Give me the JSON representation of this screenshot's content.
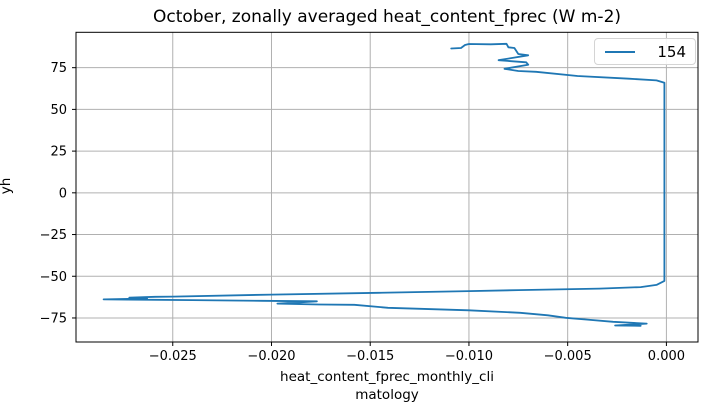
{
  "chart_data": {
    "type": "line",
    "title": "October, zonally averaged heat_content_fprec (W m-2)",
    "ylabel": "yh",
    "xlabel_lines": [
      "heat_content_fprec_monthly_cli",
      "matology"
    ],
    "grid": true,
    "legend": {
      "label": "154",
      "position": "upper right"
    },
    "line_color": "#1f77b4",
    "grid_color": "#b0b0b0",
    "xlim": [
      -0.0299,
      0.0016
    ],
    "ylim": [
      -89.4,
      96.2
    ],
    "x_ticks": {
      "values": [
        -0.025,
        -0.02,
        -0.015,
        -0.01,
        -0.005,
        0.0
      ],
      "labels": [
        "−0.025",
        "−0.020",
        "−0.015",
        "−0.010",
        "−0.005",
        "0.000"
      ]
    },
    "y_ticks": {
      "values": [
        75,
        50,
        25,
        0,
        -25,
        -50,
        -75
      ],
      "labels": [
        "75",
        "50",
        "25",
        "0",
        "−25",
        "−50",
        "−75"
      ]
    },
    "series": [
      {
        "name": "154",
        "points": [
          [
            -0.0109,
            86.5
          ],
          [
            -0.0104,
            86.8
          ],
          [
            -0.0102,
            88.6
          ],
          [
            -0.01,
            89.2
          ],
          [
            -0.0089,
            89.0
          ],
          [
            -0.0081,
            89.3
          ],
          [
            -0.008,
            87.2
          ],
          [
            -0.0077,
            86.8
          ],
          [
            -0.0075,
            83.2
          ],
          [
            -0.007,
            82.4
          ],
          [
            -0.0085,
            79.5
          ],
          [
            -0.0071,
            78.2
          ],
          [
            -0.007,
            76.8
          ],
          [
            -0.0082,
            74.3
          ],
          [
            -0.0075,
            73.0
          ],
          [
            -0.0066,
            72.5
          ],
          [
            -0.0045,
            70.0
          ],
          [
            -0.0019,
            68.4
          ],
          [
            -0.0005,
            67.4
          ],
          [
            -0.0001,
            66.0
          ],
          [
            -0.0001,
            -52.8
          ],
          [
            -0.0005,
            -55.2
          ],
          [
            -0.0013,
            -56.5
          ],
          [
            -0.0034,
            -57.4
          ],
          [
            -0.0075,
            -58.3
          ],
          [
            -0.01,
            -58.9
          ],
          [
            -0.0146,
            -59.9
          ],
          [
            -0.02,
            -61.0
          ],
          [
            -0.025,
            -62.2
          ],
          [
            -0.0259,
            -62.3
          ],
          [
            -0.0272,
            -62.8
          ],
          [
            -0.0263,
            -63.3
          ],
          [
            -0.0285,
            -63.9
          ],
          [
            -0.024,
            -64.3
          ],
          [
            -0.0205,
            -64.7
          ],
          [
            -0.0177,
            -65.0
          ],
          [
            -0.0197,
            -66.4
          ],
          [
            -0.0176,
            -66.9
          ],
          [
            -0.0158,
            -67.1
          ],
          [
            -0.0141,
            -68.9
          ],
          [
            -0.01,
            -70.4
          ],
          [
            -0.0074,
            -71.9
          ],
          [
            -0.006,
            -73.4
          ],
          [
            -0.0051,
            -74.9
          ],
          [
            -0.004,
            -76.0
          ],
          [
            -0.0027,
            -77.3
          ],
          [
            -0.001,
            -78.4
          ],
          [
            -0.0026,
            -79.5
          ],
          [
            -0.0013,
            -79.7
          ]
        ]
      }
    ]
  }
}
